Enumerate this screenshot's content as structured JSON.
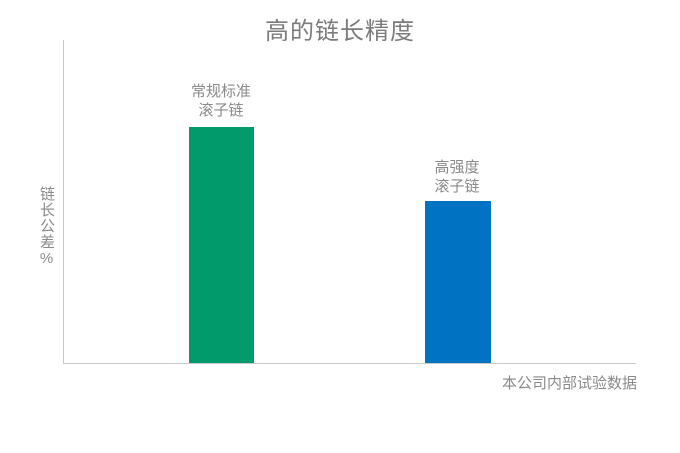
{
  "chart_data": {
    "type": "bar",
    "title": "高的链长精度",
    "ylabel": "链长公差%",
    "xlabel": "",
    "categories": [
      "常规标准滚子链",
      "高强度滚子链"
    ],
    "values": [
      73,
      50
    ],
    "value_note": "axis has no tick labels or gridlines; values are bar heights as percent of plot-area height",
    "annotation": "本公司内部试验数据",
    "grid": false,
    "legend": false,
    "series": [
      {
        "name": "常规标准滚子链",
        "label_lines": "常规标准\n滚子链",
        "value": 73,
        "color": "#009A6B"
      },
      {
        "name": "高强度滚子链",
        "label_lines": "高强度\n滚子链",
        "value": 50,
        "color": "#0072C2"
      }
    ]
  },
  "colors": {
    "background": "#FFFFFF",
    "title_text": "#7C7C7C",
    "label_text": "#8A8A8A",
    "axis_line": "#C9C9C9",
    "bar_conventional": "#009A6B",
    "bar_high_strength": "#0072C2"
  }
}
